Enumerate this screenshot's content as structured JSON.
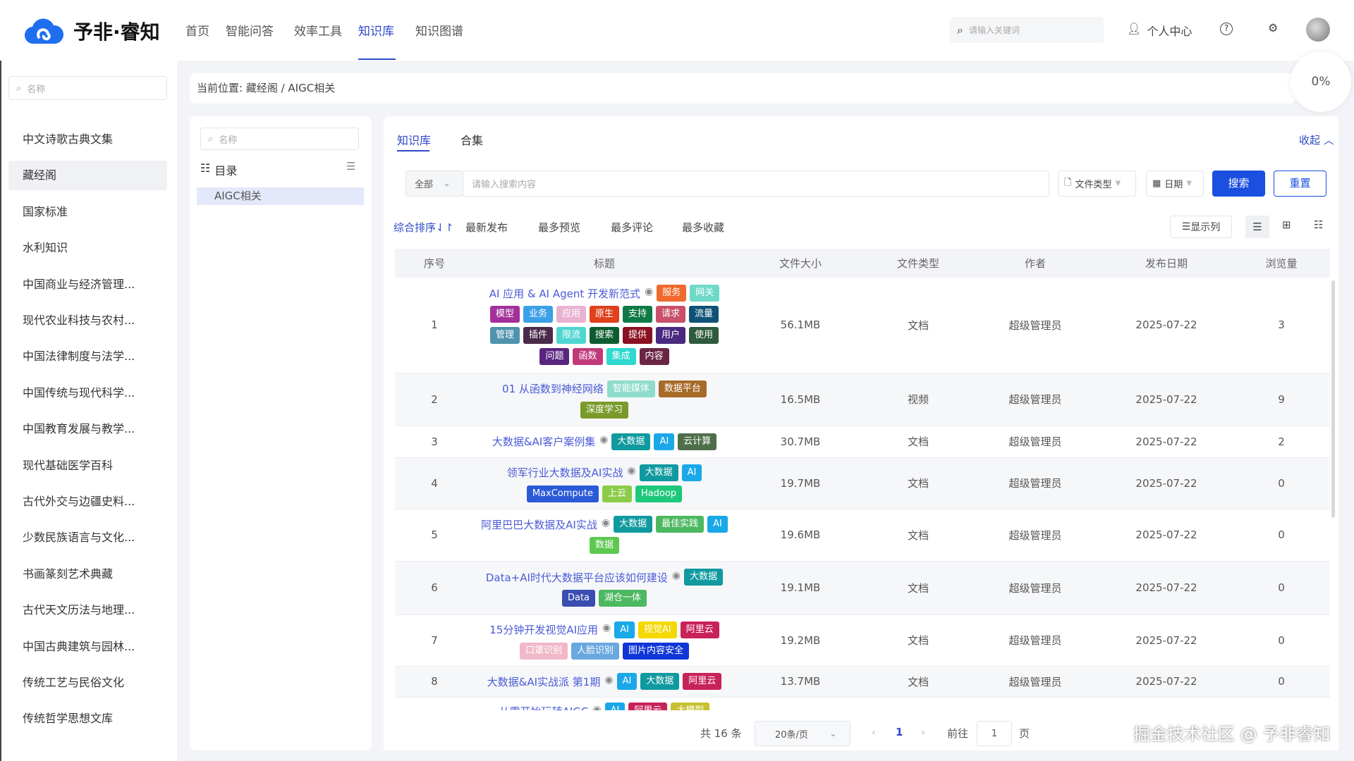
{
  "header": {
    "brand": "予非·睿知",
    "nav": [
      "首页",
      "智能问答",
      "效率工具",
      "知识库",
      "知识图谱"
    ],
    "active_nav": 3,
    "search_placeholder": "请输入关键词",
    "user_center": "个人中心"
  },
  "sidebar": {
    "search_placeholder": "名称",
    "items": [
      "中文诗歌古典文集",
      "藏经阁",
      "国家标准",
      "水利知识",
      "中国商业与经济管理...",
      "现代农业科技与农村...",
      "中国法律制度与法学...",
      "中国传统与现代科学...",
      "中国教育发展与教学...",
      "现代基础医学百科",
      "古代外交与边疆史料...",
      "少数民族语言与文化...",
      "书画篆刻艺术典藏",
      "古代天文历法与地理...",
      "中国古典建筑与园林...",
      "传统工艺与民俗文化",
      "传统哲学思想文库"
    ],
    "active": 1
  },
  "breadcrumb": "当前位置: 藏经阁 / AIGC相关",
  "progress": "0%",
  "catalog": {
    "search_placeholder": "名称",
    "title": "目录",
    "items": [
      "AIGC相关"
    ]
  },
  "main": {
    "tabs": [
      "知识库",
      "合集"
    ],
    "collapse": "收起",
    "filter": {
      "scope": "全部",
      "placeholder": "请输入搜索内容",
      "file_type": "文件类型",
      "date": "日期",
      "search": "搜索",
      "reset": "重置"
    },
    "sorts": [
      "综合排序",
      "最新发布",
      "最多预览",
      "最多评论",
      "最多收藏"
    ],
    "columns_button": "显示列",
    "columns": [
      "序号",
      "标题",
      "文件大小",
      "文件类型",
      "作者",
      "发布日期",
      "浏览量"
    ],
    "rows": [
      {
        "no": "1",
        "title": "AI 应用 & AI Agent 开发新范式",
        "eye": true,
        "size": "56.1MB",
        "type": "文档",
        "author": "超级管理员",
        "date": "2025-07-22",
        "views": "3",
        "tags": [
          [
            "服务",
            "#ef6a2c"
          ],
          [
            "网关",
            "#6fd9c8"
          ],
          [
            "模型",
            "#a3309a"
          ],
          [
            "业务",
            "#3aa0e8"
          ],
          [
            "应用",
            "#e8b3d0"
          ],
          [
            "原生",
            "#e0401a"
          ],
          [
            "支持",
            "#0f7a45"
          ],
          [
            "请求",
            "#c9506a"
          ],
          [
            "流量",
            "#0e5275"
          ],
          [
            "管理",
            "#4f93ad"
          ],
          [
            "插件",
            "#4a2a4a"
          ],
          [
            "限流",
            "#4fd6d0"
          ],
          [
            "搜索",
            "#0d5c30"
          ],
          [
            "提供",
            "#8b1020"
          ],
          [
            "用户",
            "#4a2a80"
          ],
          [
            "使用",
            "#2f5a3e"
          ],
          [
            "问题",
            "#5a2580"
          ],
          [
            "函数",
            "#c03a7a"
          ],
          [
            "集成",
            "#2fd8d0"
          ],
          [
            "内容",
            "#6a2545"
          ]
        ]
      },
      {
        "no": "2",
        "title": "01 从函数到神经网络",
        "eye": false,
        "size": "16.5MB",
        "type": "视频",
        "author": "超级管理员",
        "date": "2025-07-22",
        "views": "9",
        "tags": [
          [
            "智能媒体",
            "#8fdccb"
          ],
          [
            "数据平台",
            "#a86a28"
          ],
          [
            "深度学习",
            "#7a9a2a"
          ]
        ]
      },
      {
        "no": "3",
        "title": "大数据&AI客户案例集",
        "eye": true,
        "size": "30.7MB",
        "type": "文档",
        "author": "超级管理员",
        "date": "2025-07-22",
        "views": "2",
        "tags": [
          [
            "大数据",
            "#109aa0"
          ],
          [
            "AI",
            "#1aa8e8"
          ],
          [
            "云计算",
            "#4f6e4a"
          ]
        ]
      },
      {
        "no": "4",
        "title": "领军行业大数据及AI实战",
        "eye": true,
        "size": "19.7MB",
        "type": "文档",
        "author": "超级管理员",
        "date": "2025-07-22",
        "views": "0",
        "tags": [
          [
            "大数据",
            "#109aa0"
          ],
          [
            "AI",
            "#1aa8e8"
          ],
          [
            "MaxCompute",
            "#2b5ad8"
          ],
          [
            "上云",
            "#8ccc48"
          ],
          [
            "Hadoop",
            "#1ec87a"
          ]
        ]
      },
      {
        "no": "5",
        "title": "阿里巴巴大数据及AI实战",
        "eye": true,
        "size": "19.6MB",
        "type": "文档",
        "author": "超级管理员",
        "date": "2025-07-22",
        "views": "0",
        "tags": [
          [
            "大数据",
            "#109aa0"
          ],
          [
            "最佳实践",
            "#4cb860"
          ],
          [
            "AI",
            "#1aa8e8"
          ],
          [
            "数据",
            "#5cc850"
          ]
        ]
      },
      {
        "no": "6",
        "title": "Data+AI时代大数据平台应该如何建设",
        "eye": true,
        "size": "19.1MB",
        "type": "文档",
        "author": "超级管理员",
        "date": "2025-07-22",
        "views": "0",
        "tags": [
          [
            "大数据",
            "#109aa0"
          ],
          [
            "Data",
            "#3a4db0"
          ],
          [
            "湖仓一体",
            "#4cb860"
          ]
        ]
      },
      {
        "no": "7",
        "title": "15分钟开发视觉AI应用",
        "eye": true,
        "size": "19.2MB",
        "type": "文档",
        "author": "超级管理员",
        "date": "2025-07-22",
        "views": "0",
        "tags": [
          [
            "AI",
            "#1aa8e8"
          ],
          [
            "视觉AI",
            "#f5d800"
          ],
          [
            "阿里云",
            "#c8225a"
          ],
          [
            "口罩识别",
            "#f0b8c8"
          ],
          [
            "人脸识别",
            "#6aa8e0"
          ],
          [
            "图片内容安全",
            "#1036d8"
          ]
        ]
      },
      {
        "no": "8",
        "title": "大数据&AI实战派 第1期",
        "eye": true,
        "size": "13.7MB",
        "type": "文档",
        "author": "超级管理员",
        "date": "2025-07-22",
        "views": "0",
        "tags": [
          [
            "AI",
            "#1aa8e8"
          ],
          [
            "大数据",
            "#109aa0"
          ],
          [
            "阿里云",
            "#c8225a"
          ]
        ]
      },
      {
        "no": "",
        "title": "从零开始玩转AIGC",
        "eye": true,
        "size": "",
        "type": "",
        "author": "",
        "date": "",
        "views": "",
        "tags": [
          [
            "AI",
            "#1aa8e8"
          ],
          [
            "阿里云",
            "#c8225a"
          ],
          [
            "大模型",
            "#c8c030"
          ]
        ]
      }
    ],
    "pagination": {
      "total": "共 16 条",
      "page_size": "20条/页",
      "current": "1",
      "goto": "前往",
      "page_input": "1",
      "page_unit": "页"
    }
  },
  "watermark": "掘金技术社区 @ 予非睿知",
  "colors": {
    "accent": "#2f49c8",
    "button": "#1a4fe0"
  }
}
